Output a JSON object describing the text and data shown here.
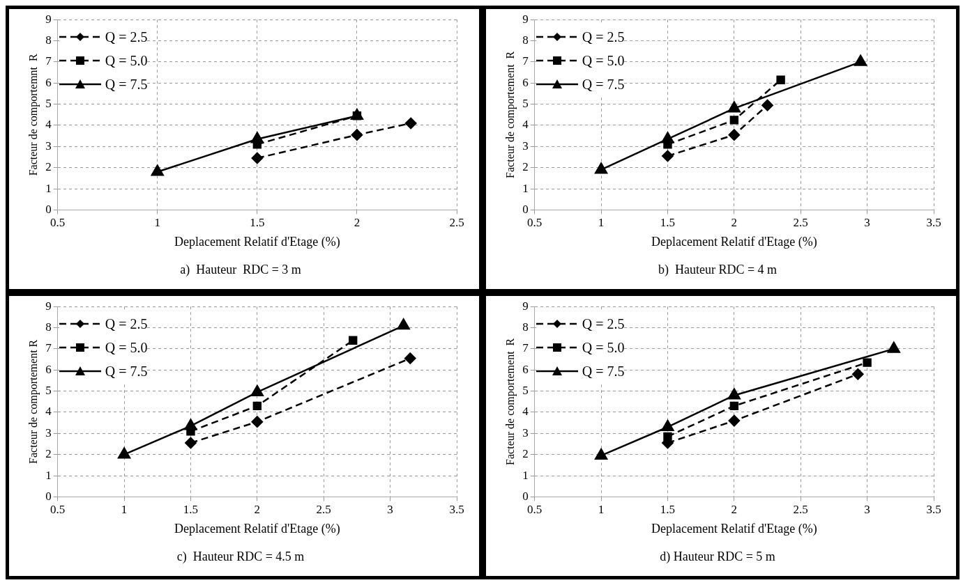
{
  "chart_data": [
    {
      "type": "line",
      "title": "a)  Hauteur  RDC = 3 m",
      "xlabel": "Deplacement Relatif d'Etage (%)",
      "ylabel": "Facteur de comportemnt  R",
      "xlim": [
        0.5,
        2.5
      ],
      "xticks": [
        0.5,
        1,
        1.5,
        2,
        2.5
      ],
      "ylim": [
        0,
        9
      ],
      "yticks": [
        0,
        1,
        2,
        3,
        4,
        5,
        6,
        7,
        8,
        9
      ],
      "grid": true,
      "legend": "top left",
      "series": [
        {
          "name": "Q = 2.5",
          "color": "#000000",
          "marker": "diamond",
          "line_style": "dashed",
          "x": [
            1.5,
            2,
            2.27
          ],
          "values": [
            2.45,
            3.55,
            4.1
          ]
        },
        {
          "name": "Q = 5.0",
          "color": "#000000",
          "marker": "square",
          "line_style": "dashed",
          "x": [
            1.5,
            2
          ],
          "values": [
            3.1,
            4.45
          ]
        },
        {
          "name": "Q = 7.5",
          "color": "#000000",
          "marker": "triangle",
          "line_style": "solid",
          "x": [
            1,
            1.5,
            2
          ],
          "values": [
            1.8,
            3.35,
            4.45
          ]
        }
      ]
    },
    {
      "type": "line",
      "title": "b)  Hauteur RDC = 4 m",
      "xlabel": "Deplacement Relatif d'Etage (%)",
      "ylabel": "Facteur de comportement  R",
      "xlim": [
        0.5,
        3.5
      ],
      "xticks": [
        0.5,
        1,
        1.5,
        2,
        2.5,
        3,
        3.5
      ],
      "ylim": [
        0,
        9
      ],
      "yticks": [
        0,
        1,
        2,
        3,
        4,
        5,
        6,
        7,
        8,
        9
      ],
      "grid": true,
      "legend": "top left",
      "series": [
        {
          "name": "Q = 2.5",
          "color": "#000000",
          "marker": "diamond",
          "line_style": "dashed",
          "x": [
            1.5,
            2,
            2.25
          ],
          "values": [
            2.55,
            3.55,
            4.95
          ]
        },
        {
          "name": "Q = 5.0",
          "color": "#000000",
          "marker": "square",
          "line_style": "dashed",
          "x": [
            1.5,
            2,
            2.35
          ],
          "values": [
            3.1,
            4.25,
            6.15
          ]
        },
        {
          "name": "Q = 7.5",
          "color": "#000000",
          "marker": "triangle",
          "line_style": "solid",
          "x": [
            1,
            1.5,
            2,
            2.95
          ],
          "values": [
            1.9,
            3.35,
            4.8,
            7.0
          ]
        }
      ]
    },
    {
      "type": "line",
      "title": "c)  Hauteur RDC = 4.5 m",
      "xlabel": "Deplacement Relatif d'Etage (%)",
      "ylabel": "Facteur de comportement R",
      "xlim": [
        0.5,
        3.5
      ],
      "xticks": [
        0.5,
        1,
        1.5,
        2,
        2.5,
        3,
        3.5
      ],
      "ylim": [
        0,
        9
      ],
      "yticks": [
        0,
        1,
        2,
        3,
        4,
        5,
        6,
        7,
        8,
        9
      ],
      "grid": true,
      "legend": "top left",
      "series": [
        {
          "name": "Q = 2.5",
          "color": "#000000",
          "marker": "diamond",
          "line_style": "dashed",
          "x": [
            1.5,
            2,
            3.15
          ],
          "values": [
            2.55,
            3.55,
            6.55
          ]
        },
        {
          "name": "Q = 5.0",
          "color": "#000000",
          "marker": "square",
          "line_style": "dashed",
          "x": [
            1.5,
            2,
            2.72
          ],
          "values": [
            3.1,
            4.3,
            7.4
          ]
        },
        {
          "name": "Q = 7.5",
          "color": "#000000",
          "marker": "triangle",
          "line_style": "solid",
          "x": [
            1,
            1.5,
            2,
            3.1
          ],
          "values": [
            2.0,
            3.35,
            4.95,
            8.1
          ]
        }
      ]
    },
    {
      "type": "line",
      "title": "d) Hauteur RDC = 5 m",
      "xlabel": "Deplacement Relatif d'Etage (%)",
      "ylabel": "Facteur de comportement  R",
      "xlim": [
        0.5,
        3.5
      ],
      "xticks": [
        0.5,
        1,
        1.5,
        2,
        2.5,
        3,
        3.5
      ],
      "ylim": [
        0,
        9
      ],
      "yticks": [
        0,
        1,
        2,
        3,
        4,
        5,
        6,
        7,
        8,
        9
      ],
      "grid": true,
      "legend": "top left",
      "series": [
        {
          "name": "Q = 2.5",
          "color": "#000000",
          "marker": "diamond",
          "line_style": "dashed",
          "x": [
            1.5,
            2,
            2.93
          ],
          "values": [
            2.55,
            3.6,
            5.8
          ]
        },
        {
          "name": "Q = 5.0",
          "color": "#000000",
          "marker": "square",
          "line_style": "dashed",
          "x": [
            1.5,
            2,
            3.0
          ],
          "values": [
            2.85,
            4.3,
            6.35
          ]
        },
        {
          "name": "Q = 7.5",
          "color": "#000000",
          "marker": "triangle",
          "line_style": "solid",
          "x": [
            1,
            1.5,
            2,
            3.2
          ],
          "values": [
            1.95,
            3.3,
            4.8,
            7.0
          ]
        }
      ]
    }
  ]
}
